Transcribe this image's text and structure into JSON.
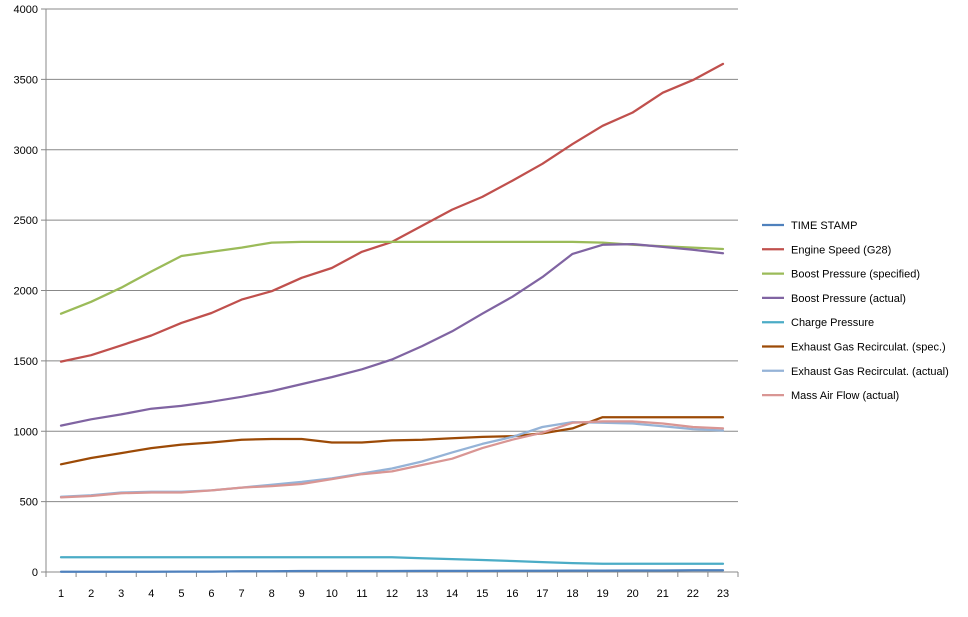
{
  "chart_data": {
    "type": "line",
    "title": "",
    "xlabel": "",
    "ylabel": "",
    "ylim": [
      0,
      4000
    ],
    "yticks": [
      0,
      500,
      1000,
      1500,
      2000,
      2500,
      3000,
      3500,
      4000
    ],
    "grid": true,
    "legend": "right",
    "x": [
      1,
      2,
      3,
      4,
      5,
      6,
      7,
      8,
      9,
      10,
      11,
      12,
      13,
      14,
      15,
      16,
      17,
      18,
      19,
      20,
      21,
      22,
      23
    ],
    "series": [
      {
        "name": "TIME STAMP",
        "color": "#4f81bd",
        "values": [
          2,
          2,
          2,
          2,
          3,
          3,
          5,
          5,
          7,
          7,
          7,
          7,
          8,
          8,
          8,
          9,
          9,
          10,
          10,
          11,
          11,
          12,
          12
        ]
      },
      {
        "name": "Engine Speed (G28)",
        "color": "#c0504d",
        "values": [
          1495,
          1540,
          1610,
          1680,
          1770,
          1840,
          1935,
          1995,
          2090,
          2160,
          2275,
          2345,
          2460,
          2575,
          2665,
          2780,
          2900,
          3040,
          3170,
          3265,
          3405,
          3495,
          3610
        ]
      },
      {
        "name": "Boost Pressure (specified)",
        "color": "#9bbb59",
        "values": [
          1835,
          1920,
          2020,
          2135,
          2245,
          2275,
          2305,
          2340,
          2345,
          2345,
          2345,
          2345,
          2345,
          2345,
          2345,
          2345,
          2345,
          2345,
          2340,
          2325,
          2315,
          2305,
          2295
        ]
      },
      {
        "name": "Boost Pressure (actual)",
        "color": "#8064a2",
        "values": [
          1040,
          1085,
          1120,
          1160,
          1180,
          1210,
          1245,
          1285,
          1335,
          1385,
          1440,
          1510,
          1605,
          1710,
          1835,
          1955,
          2095,
          2260,
          2325,
          2330,
          2310,
          2290,
          2265
        ]
      },
      {
        "name": "Charge Pressure",
        "color": "#4bacc6",
        "values": [
          105,
          105,
          105,
          105,
          105,
          105,
          105,
          105,
          105,
          105,
          105,
          105,
          98,
          92,
          85,
          78,
          70,
          63,
          58,
          58,
          58,
          58,
          58
        ]
      },
      {
        "name": "Exhaust Gas Recirculat. (spec.)",
        "color": "#9c4a06",
        "values": [
          765,
          810,
          845,
          880,
          905,
          920,
          940,
          945,
          945,
          920,
          920,
          935,
          940,
          950,
          960,
          965,
          985,
          1020,
          1100,
          1100,
          1100,
          1100,
          1100
        ]
      },
      {
        "name": "Exhaust Gas Recirculat. (actual)",
        "color": "#95b3d7",
        "values": [
          535,
          545,
          565,
          570,
          570,
          580,
          600,
          620,
          640,
          665,
          700,
          735,
          785,
          850,
          910,
          960,
          1030,
          1065,
          1060,
          1055,
          1035,
          1015,
          1005
        ]
      },
      {
        "name": "Mass Air Flow (actual)",
        "color": "#d99694",
        "values": [
          530,
          540,
          560,
          565,
          565,
          580,
          600,
          610,
          625,
          660,
          695,
          715,
          760,
          805,
          880,
          940,
          990,
          1060,
          1070,
          1070,
          1055,
          1030,
          1020
        ]
      }
    ]
  }
}
